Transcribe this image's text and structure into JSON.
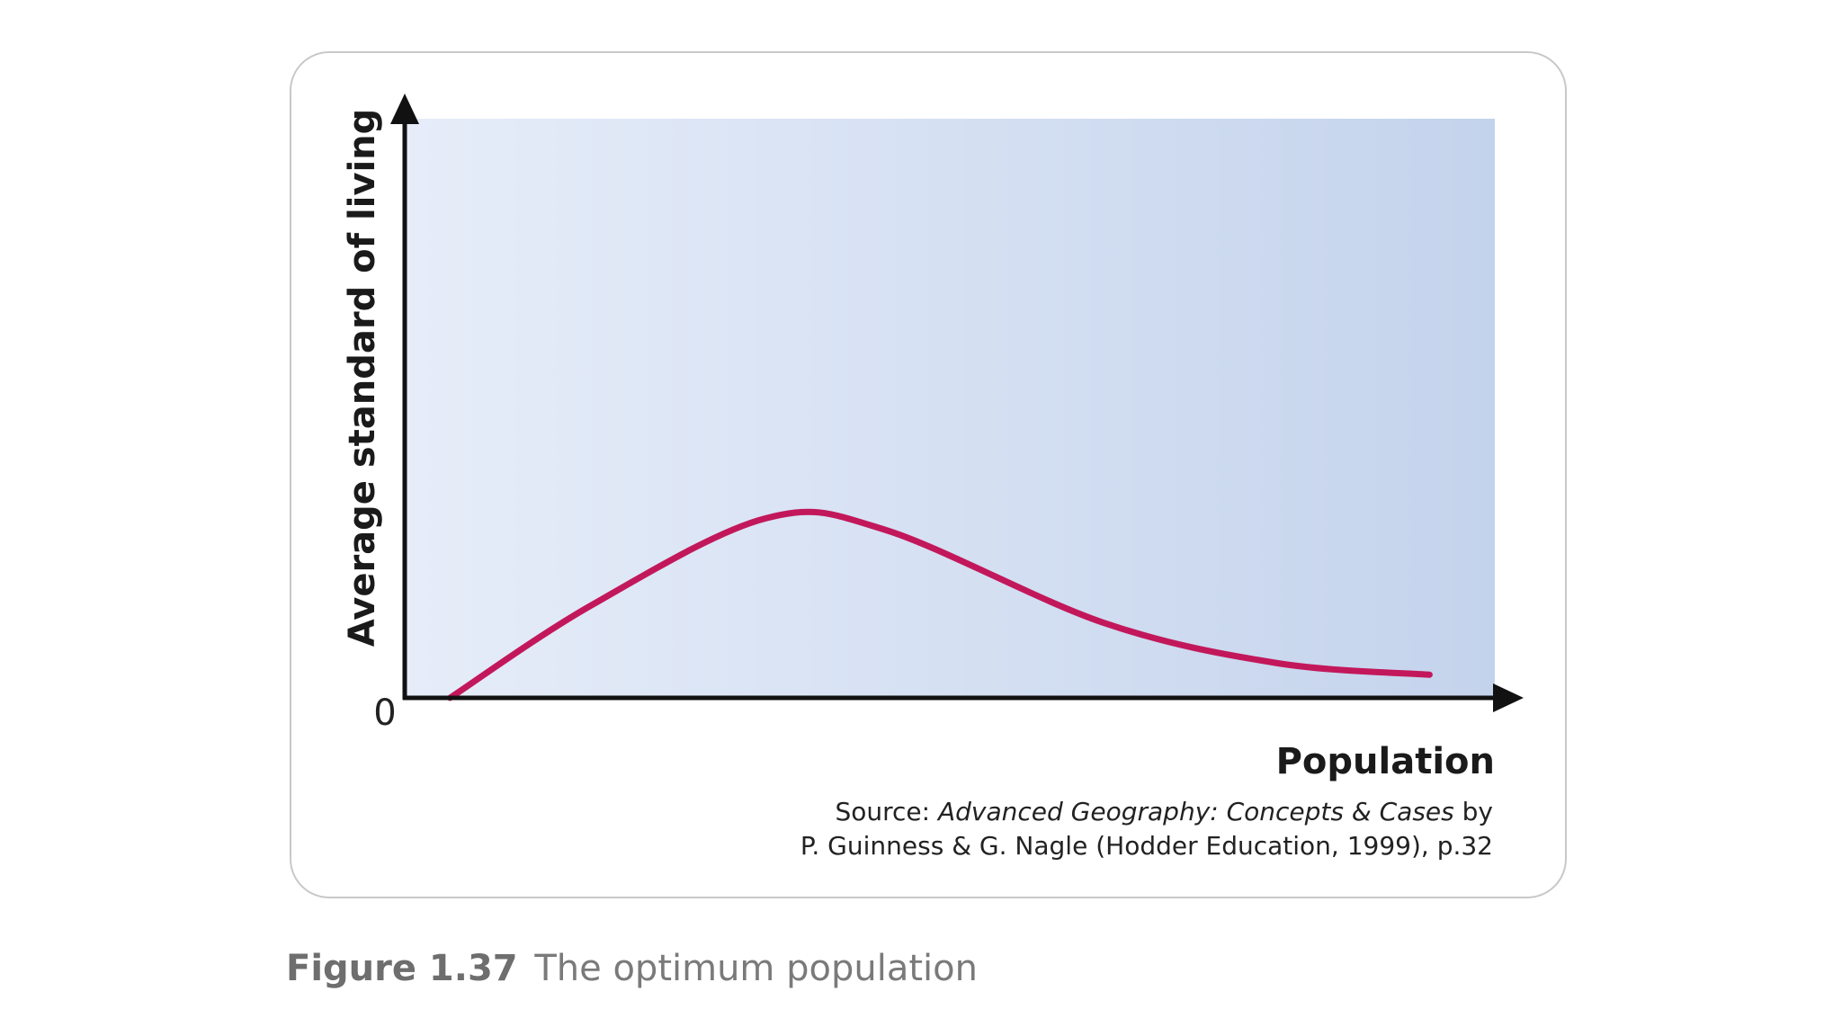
{
  "chart_data": {
    "type": "line",
    "title": "",
    "xlabel": "Population",
    "ylabel": "Average standard of living",
    "origin_label": "0",
    "xlim": [
      0,
      100
    ],
    "ylim": [
      0,
      100
    ],
    "grid": false,
    "legend": "none",
    "series": [
      {
        "color": "#c2185b",
        "x": [
          4,
          17,
          33,
          44,
          64,
          80,
          94
        ],
        "y": [
          0,
          16,
          31,
          29,
          13,
          6,
          4
        ]
      }
    ],
    "colors": {
      "axis": "#111111",
      "plot_bg_left": "#e6edf9",
      "plot_bg_right": "#c4d3ec"
    }
  },
  "source": {
    "prefix": "Source: ",
    "book": "Advanced Geography: Concepts & Cases",
    "suffix": " by",
    "line2": "P. Guinness & G. Nagle (Hodder Education, 1999), p.32"
  },
  "caption": {
    "figure_number": "Figure 1.37",
    "text": "The optimum population"
  }
}
